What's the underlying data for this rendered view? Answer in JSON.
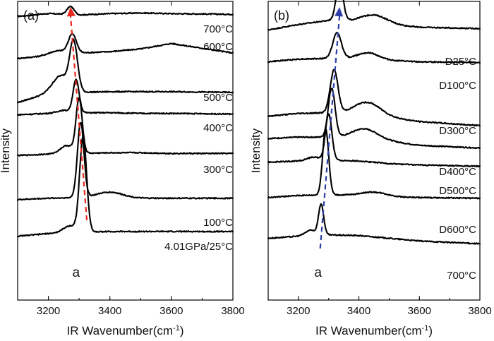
{
  "chart_data": [
    {
      "type": "line",
      "panel_label": "(a)",
      "xlabel": "IR Wavenumber(cm",
      "xlabel_sup": "-1",
      "xlabel_end": ")",
      "ylabel": "Intensity",
      "xlim": [
        3100,
        3800
      ],
      "xticks": [
        3200,
        3400,
        3600,
        3800
      ],
      "peak_label": "a",
      "shift_arrow": {
        "color": "#e8281e",
        "from_wavenumber": 3325,
        "to_wavenumber": 3272
      },
      "series": [
        {
          "name": "700°C",
          "label": "700°C",
          "baseline": 420,
          "peak": 3272,
          "height": 12,
          "width": 16,
          "shoulder": {
            "center": 3200,
            "height": 2,
            "width": 60
          },
          "trend": [
            -2,
            0,
            0,
            2,
            3,
            2,
            1
          ]
        },
        {
          "name": "600°C",
          "label": "600°C",
          "baseline": 360,
          "peak": 3278,
          "height": 28,
          "width": 18,
          "shoulder": {
            "center": 3230,
            "height": 6,
            "width": 40
          },
          "trend": [
            -4,
            0,
            4,
            6,
            10,
            18,
            4
          ]
        },
        {
          "name": "500°C",
          "label": "500°C",
          "baseline": 305,
          "peak": 3282,
          "height": 72,
          "width": 18,
          "shoulder": {
            "center": 3240,
            "height": 25,
            "width": 35
          },
          "trend": [
            -14,
            0,
            1,
            2,
            2,
            2,
            1
          ]
        },
        {
          "name": "400°C",
          "label": "400°C",
          "baseline": 275,
          "peak": 3290,
          "height": 48,
          "width": 14,
          "shoulder": {
            "center": 3250,
            "height": 4,
            "width": 30
          },
          "trend": [
            -2,
            0,
            1,
            1,
            0,
            0,
            -1
          ]
        },
        {
          "name": "300°C",
          "label": "300°C",
          "baseline": 215,
          "peak": 3300,
          "height": 80,
          "width": 14,
          "shoulder": {
            "center": 3260,
            "height": 12,
            "width": 30
          },
          "trend": [
            -2,
            0,
            1,
            2,
            2,
            1,
            1
          ]
        },
        {
          "name": "100°C",
          "label": "100°C",
          "baseline": 150,
          "peak": 3305,
          "height": 110,
          "width": 15,
          "shoulder": {
            "center": 3400,
            "height": 8,
            "width": 60
          },
          "trend": [
            -2,
            0,
            1,
            1,
            0,
            0,
            0
          ]
        },
        {
          "name": "4.01GPa/25°C",
          "label": "4.01GPa/25°C",
          "baseline": 100,
          "peak": 3313,
          "height": 140,
          "width": 16,
          "shoulder": {
            "center": 3270,
            "height": 10,
            "width": 30
          },
          "trend": [
            -6,
            -2,
            0,
            1,
            1,
            1,
            1
          ]
        }
      ]
    },
    {
      "type": "line",
      "panel_label": "(b)",
      "xlabel": "IR Wavenumber(cm",
      "xlabel_sup": "-1",
      "xlabel_end": ")",
      "ylabel": "Intensity",
      "xlim": [
        3100,
        3800
      ],
      "xticks": [
        3200,
        3400,
        3600,
        3800
      ],
      "peak_label": "a",
      "shift_arrow": {
        "color": "#2b3fa6",
        "from_wavenumber": 3272,
        "to_wavenumber": 3336
      },
      "series": [
        {
          "name": "D25°C",
          "label": "D25°C",
          "baseline": 412,
          "peak": 3336,
          "height": 58,
          "width": 16,
          "shoulder": {
            "center": 3450,
            "height": 12,
            "width": 60
          },
          "trend": [
            -14,
            -6,
            0,
            -2,
            -6,
            -10,
            -12
          ]
        },
        {
          "name": "D100°C",
          "label": "D100°C",
          "baseline": 355,
          "peak": 3328,
          "height": 38,
          "width": 20,
          "shoulder": {
            "center": 3430,
            "height": 10,
            "width": 50
          },
          "trend": [
            -4,
            0,
            1,
            0,
            -2,
            -4,
            -5
          ]
        },
        {
          "name": "D300°C",
          "label": "D300°C",
          "baseline": 275,
          "peak": 3318,
          "height": 63,
          "width": 18,
          "shoulder": {
            "center": 3430,
            "height": 18,
            "width": 60
          },
          "trend": [
            -4,
            0,
            1,
            0,
            -6,
            -12,
            -18
          ]
        },
        {
          "name": "D400°C",
          "label": "D400°C",
          "baseline": 240,
          "peak": 3310,
          "height": 72,
          "width": 16,
          "shoulder": {
            "center": 3420,
            "height": 15,
            "width": 60
          },
          "trend": [
            -2,
            0,
            0,
            -2,
            -6,
            -12,
            -16
          ]
        },
        {
          "name": "D500°C",
          "label": "D500°C",
          "baseline": 205,
          "peak": 3300,
          "height": 68,
          "width": 15,
          "shoulder": {
            "center": 3250,
            "height": 5,
            "width": 30
          },
          "trend": [
            -2,
            0,
            1,
            0,
            -4,
            -6,
            -8
          ]
        },
        {
          "name": "D600°C",
          "label": "D600°C",
          "baseline": 155,
          "peak": 3290,
          "height": 98,
          "width": 14,
          "shoulder": {
            "center": 3450,
            "height": 6,
            "width": 60
          },
          "trend": [
            -4,
            -1,
            0,
            -1,
            -3,
            -4,
            -5
          ]
        },
        {
          "name": "700°C",
          "label": "700°C",
          "baseline": 95,
          "peak": 3275,
          "height": 45,
          "width": 12,
          "shoulder": {
            "center": 3240,
            "height": 8,
            "width": 25
          },
          "trend": [
            -4,
            -1,
            1,
            0,
            -4,
            -8,
            -12
          ]
        }
      ]
    }
  ]
}
